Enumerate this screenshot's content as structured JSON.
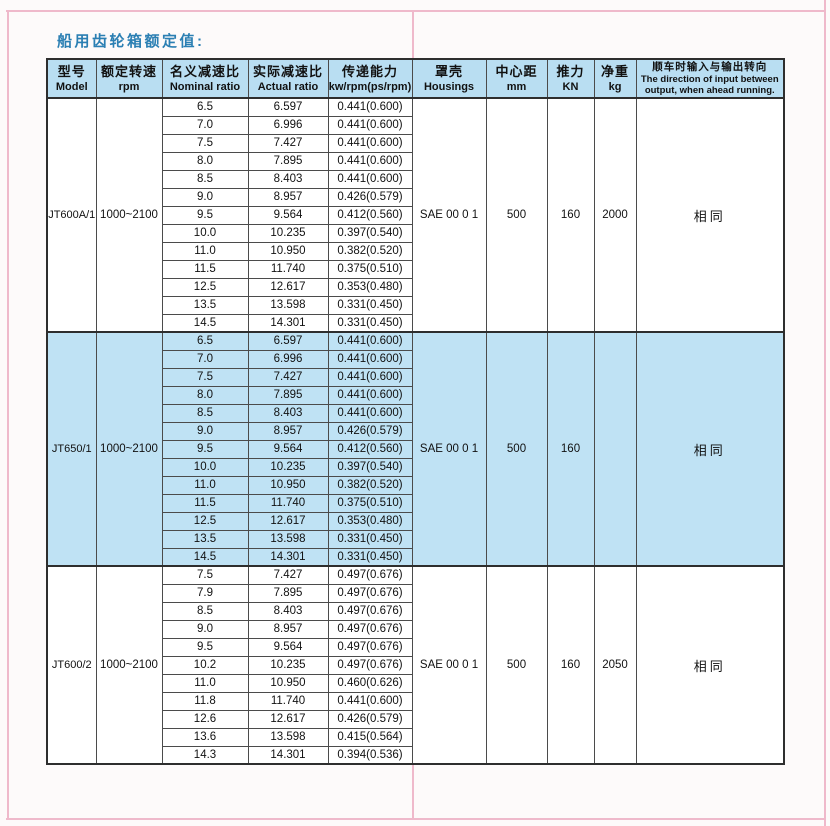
{
  "page": {
    "title": "船用齿轮箱额定值:"
  },
  "colors": {
    "title_color": "#2b7fb3",
    "header_bg": "#b9def2",
    "highlight_bg": "#bfe2f4",
    "crop_line": "#efb9cb",
    "border_dark": "#2e2e2e",
    "border_mid": "#4b4b4b"
  },
  "table": {
    "headers": [
      {
        "zh": "型号",
        "en": "Model"
      },
      {
        "zh": "额定转速",
        "en": "rpm"
      },
      {
        "zh": "名义减速比",
        "en": "Nominal ratio"
      },
      {
        "zh": "实际减速比",
        "en": "Actual ratio"
      },
      {
        "zh": "传递能力",
        "en": "kw/rpm(ps/rpm)"
      },
      {
        "zh": "罩壳",
        "en": "Housings"
      },
      {
        "zh": "中心距",
        "en": "mm"
      },
      {
        "zh": "推力",
        "en": "KN"
      },
      {
        "zh": "净重",
        "en": "kg"
      },
      {
        "zh": "顺车时输入与输出转向",
        "en": "The direction of input between output, when ahead running."
      }
    ],
    "sections": [
      {
        "model": "JT600A/1",
        "rpm": "1000~2100",
        "housing": "SAE 00 0 1",
        "center_distance_mm": "500",
        "thrust_kn": "160",
        "weight_kg": "2000",
        "direction": "相同",
        "highlight": false,
        "rows": [
          [
            "6.5",
            "6.597",
            "0.441(0.600)"
          ],
          [
            "7.0",
            "6.996",
            "0.441(0.600)"
          ],
          [
            "7.5",
            "7.427",
            "0.441(0.600)"
          ],
          [
            "8.0",
            "7.895",
            "0.441(0.600)"
          ],
          [
            "8.5",
            "8.403",
            "0.441(0.600)"
          ],
          [
            "9.0",
            "8.957",
            "0.426(0.579)"
          ],
          [
            "9.5",
            "9.564",
            "0.412(0.560)"
          ],
          [
            "10.0",
            "10.235",
            "0.397(0.540)"
          ],
          [
            "11.0",
            "10.950",
            "0.382(0.520)"
          ],
          [
            "11.5",
            "11.740",
            "0.375(0.510)"
          ],
          [
            "12.5",
            "12.617",
            "0.353(0.480)"
          ],
          [
            "13.5",
            "13.598",
            "0.331(0.450)"
          ],
          [
            "14.5",
            "14.301",
            "0.331(0.450)"
          ]
        ]
      },
      {
        "model": "JT650/1",
        "rpm": "1000~2100",
        "housing": "SAE 00 0 1",
        "center_distance_mm": "500",
        "thrust_kn": "160",
        "weight_kg": "",
        "direction": "相同",
        "highlight": true,
        "rows": [
          [
            "6.5",
            "6.597",
            "0.441(0.600)"
          ],
          [
            "7.0",
            "6.996",
            "0.441(0.600)"
          ],
          [
            "7.5",
            "7.427",
            "0.441(0.600)"
          ],
          [
            "8.0",
            "7.895",
            "0.441(0.600)"
          ],
          [
            "8.5",
            "8.403",
            "0.441(0.600)"
          ],
          [
            "9.0",
            "8.957",
            "0.426(0.579)"
          ],
          [
            "9.5",
            "9.564",
            "0.412(0.560)"
          ],
          [
            "10.0",
            "10.235",
            "0.397(0.540)"
          ],
          [
            "11.0",
            "10.950",
            "0.382(0.520)"
          ],
          [
            "11.5",
            "11.740",
            "0.375(0.510)"
          ],
          [
            "12.5",
            "12.617",
            "0.353(0.480)"
          ],
          [
            "13.5",
            "13.598",
            "0.331(0.450)"
          ],
          [
            "14.5",
            "14.301",
            "0.331(0.450)"
          ]
        ]
      },
      {
        "model": "JT600/2",
        "rpm": "1000~2100",
        "housing": "SAE 00 0 1",
        "center_distance_mm": "500",
        "thrust_kn": "160",
        "weight_kg": "2050",
        "direction": "相同",
        "highlight": false,
        "rows": [
          [
            "7.5",
            "7.427",
            "0.497(0.676)"
          ],
          [
            "7.9",
            "7.895",
            "0.497(0.676)"
          ],
          [
            "8.5",
            "8.403",
            "0.497(0.676)"
          ],
          [
            "9.0",
            "8.957",
            "0.497(0.676)"
          ],
          [
            "9.5",
            "9.564",
            "0.497(0.676)"
          ],
          [
            "10.2",
            "10.235",
            "0.497(0.676)"
          ],
          [
            "11.0",
            "10.950",
            "0.460(0.626)"
          ],
          [
            "11.8",
            "11.740",
            "0.441(0.600)"
          ],
          [
            "12.6",
            "12.617",
            "0.426(0.579)"
          ],
          [
            "13.6",
            "13.598",
            "0.415(0.564)"
          ],
          [
            "14.3",
            "14.301",
            "0.394(0.536)"
          ]
        ]
      }
    ]
  }
}
